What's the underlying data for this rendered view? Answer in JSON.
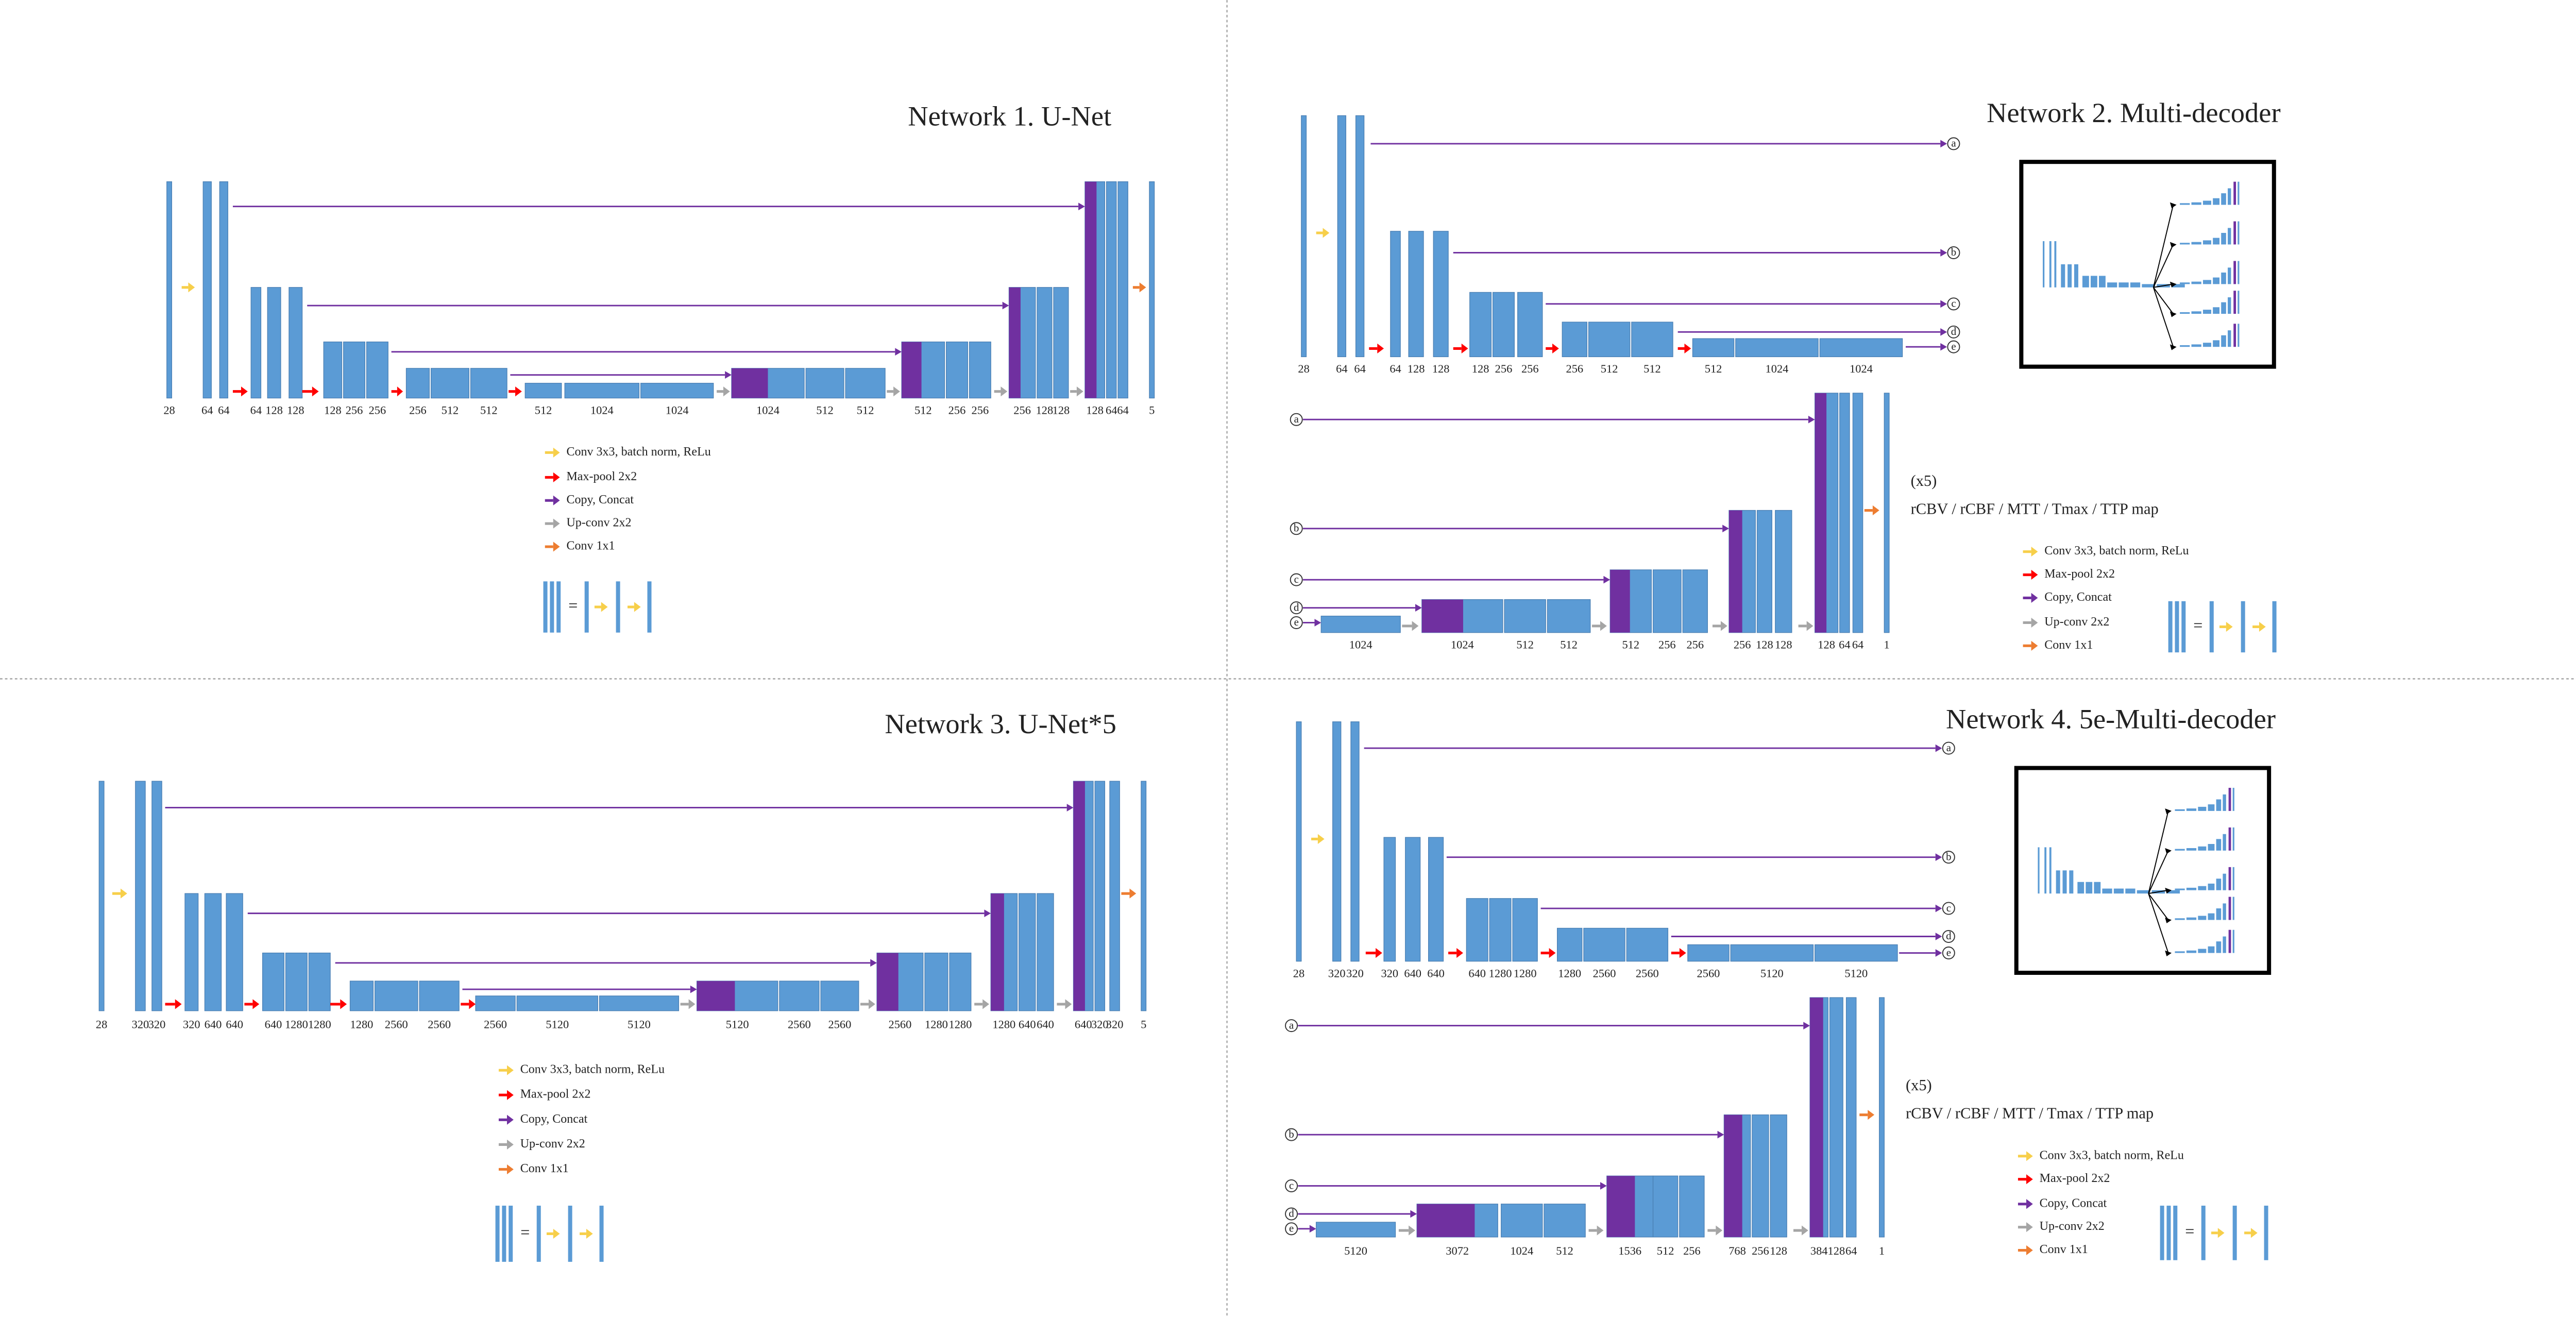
{
  "panels": [
    {
      "title": "Network 1. U-Net",
      "labels": [
        28,
        64,
        64,
        64,
        128,
        128,
        128,
        256,
        256,
        256,
        512,
        512,
        512,
        1024,
        1024,
        1024,
        512,
        512,
        512,
        256,
        256,
        256,
        128,
        128,
        128,
        64,
        64,
        5
      ],
      "legend": [
        "Conv 3x3, batch norm, ReLu",
        "Max-pool 2x2",
        "Copy, Concat",
        "Up-conv 2x2",
        "Conv 1x1"
      ],
      "equals": "="
    },
    {
      "title": "Network 2. Multi-decoder",
      "encoder_labels": [
        28,
        64,
        64,
        64,
        128,
        128,
        128,
        256,
        256,
        256,
        512,
        512,
        512,
        1024,
        1024
      ],
      "decoder_labels": [
        1024,
        1024,
        512,
        512,
        512,
        256,
        256,
        256,
        128,
        128,
        128,
        64,
        64,
        1
      ],
      "inputs": [
        "a",
        "b",
        "c",
        "d",
        "e"
      ],
      "note": "(x5)",
      "output": "rCBV / rCBF / MTT / Tmax / TTP map",
      "legend": [
        "Conv 3x3, batch norm, ReLu",
        "Max-pool 2x2",
        "Copy, Concat",
        "Up-conv 2x2",
        "Conv 1x1"
      ],
      "equals": "="
    },
    {
      "title": "Network 3. U-Net*5",
      "labels": [
        28,
        320,
        320,
        320,
        640,
        640,
        640,
        1280,
        1280,
        1280,
        2560,
        2560,
        2560,
        5120,
        5120,
        5120,
        2560,
        2560,
        2560,
        1280,
        1280,
        1280,
        640,
        640,
        640,
        320,
        320,
        5
      ],
      "legend": [
        "Conv 3x3, batch norm, ReLu",
        "Max-pool 2x2",
        "Copy, Concat",
        "Up-conv 2x2",
        "Conv 1x1"
      ],
      "equals": "="
    },
    {
      "title": "Network 4. 5e-Multi-decoder",
      "encoder_labels": [
        28,
        320,
        320,
        320,
        640,
        640,
        640,
        1280,
        1280,
        1280,
        2560,
        2560,
        2560,
        5120,
        5120
      ],
      "decoder_labels": [
        5120,
        3072,
        1024,
        512,
        1536,
        512,
        256,
        768,
        256,
        128,
        384,
        128,
        64,
        1
      ],
      "inputs": [
        "a",
        "b",
        "c",
        "d",
        "e"
      ],
      "note": "(x5)",
      "output": "rCBV / rCBF / MTT / Tmax / TTP map",
      "legend": [
        "Conv 3x3, batch norm, ReLu",
        "Max-pool 2x2",
        "Copy, Concat",
        "Up-conv 2x2",
        "Conv 1x1"
      ],
      "equals": "="
    }
  ]
}
